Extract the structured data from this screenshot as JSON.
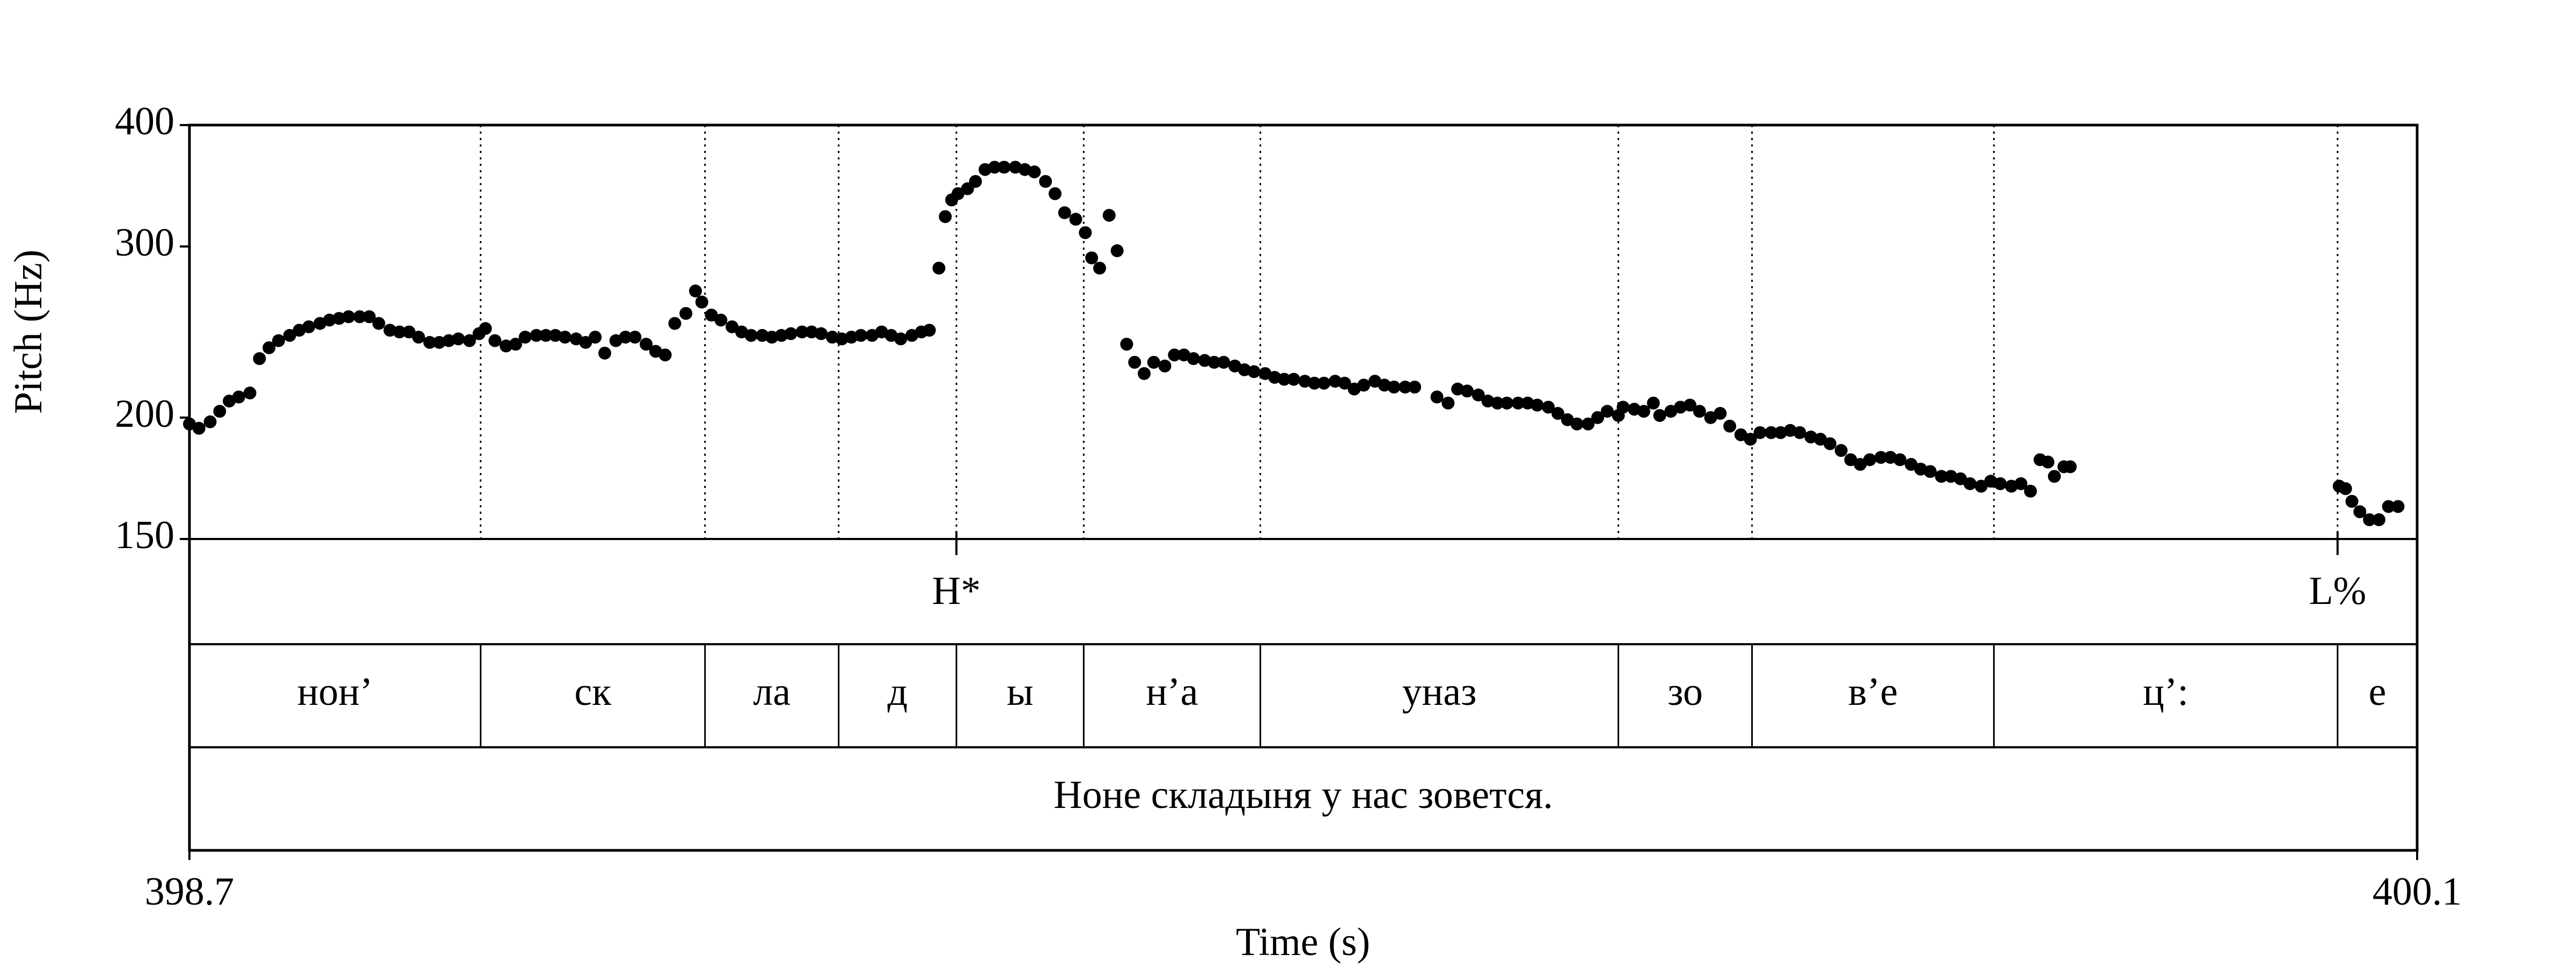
{
  "chart_data": {
    "type": "scatter",
    "x_label": "Time (s)",
    "y_label": "Pitch (Hz)",
    "xlim": [
      398.7,
      400.1
    ],
    "xticks": [
      398.7,
      400.1
    ],
    "ylim": [
      150,
      400
    ],
    "yticks": [
      150,
      200,
      300,
      400
    ],
    "y_scale": "log",
    "grid": false,
    "color": "#000000",
    "x": [
      398.7,
      398.706,
      398.713,
      398.719,
      398.725,
      398.731,
      398.738,
      398.744,
      398.75,
      398.756,
      398.763,
      398.769,
      398.775,
      398.782,
      398.788,
      398.794,
      398.8,
      398.807,
      398.813,
      398.819,
      398.826,
      398.832,
      398.838,
      398.844,
      398.851,
      398.857,
      398.863,
      398.869,
      398.876,
      398.882,
      398.886,
      398.892,
      398.899,
      398.905,
      398.911,
      398.918,
      398.924,
      398.93,
      398.936,
      398.943,
      398.949,
      398.955,
      398.961,
      398.968,
      398.974,
      398.98,
      398.987,
      398.993,
      398.999,
      399.005,
      399.012,
      399.018,
      399.022,
      399.028,
      399.034,
      399.041,
      399.047,
      399.053,
      399.06,
      399.066,
      399.072,
      399.078,
      399.085,
      399.091,
      399.097,
      399.104,
      399.11,
      399.116,
      399.122,
      399.129,
      399.135,
      399.141,
      399.147,
      399.154,
      399.16,
      399.165,
      399.171,
      399.175,
      399.179,
      399.183,
      399.189,
      399.194,
      399.2,
      399.206,
      399.212,
      399.219,
      399.225,
      399.231,
      399.238,
      399.244,
      399.25,
      399.257,
      399.263,
      399.267,
      399.272,
      399.278,
      399.283,
      399.289,
      399.294,
      399.3,
      399.306,
      399.313,
      399.319,
      399.325,
      399.331,
      399.338,
      399.344,
      399.35,
      399.357,
      399.363,
      399.369,
      399.376,
      399.382,
      399.388,
      399.394,
      399.401,
      399.407,
      399.413,
      399.42,
      399.426,
      399.432,
      399.438,
      399.445,
      399.451,
      399.457,
      399.464,
      399.47,
      399.484,
      399.491,
      399.497,
      399.503,
      399.51,
      399.516,
      399.522,
      399.528,
      399.535,
      399.541,
      399.547,
      399.554,
      399.56,
      399.566,
      399.572,
      399.579,
      399.585,
      399.591,
      399.598,
      399.601,
      399.608,
      399.614,
      399.62,
      399.624,
      399.631,
      399.637,
      399.643,
      399.649,
      399.656,
      399.662,
      399.668,
      399.675,
      399.681,
      399.687,
      399.694,
      399.7,
      399.706,
      399.712,
      399.719,
      399.725,
      399.731,
      399.738,
      399.744,
      399.75,
      399.756,
      399.763,
      399.769,
      399.775,
      399.782,
      399.788,
      399.794,
      399.801,
      399.807,
      399.813,
      399.819,
      399.826,
      399.832,
      399.838,
      399.845,
      399.851,
      399.857,
      399.863,
      399.868,
      399.872,
      399.878,
      399.882,
      400.051,
      400.055,
      400.059,
      400.064,
      400.07,
      400.076,
      400.082,
      400.088
    ],
    "values": [
      197,
      195,
      198,
      203,
      208,
      210,
      212,
      230,
      236,
      240,
      243,
      246,
      248,
      250,
      252,
      253,
      254,
      254,
      254,
      250,
      246,
      245,
      245,
      242,
      239,
      239,
      240,
      241,
      240,
      244,
      247,
      240,
      237,
      238,
      242,
      243,
      243,
      243,
      242,
      241,
      239,
      242,
      233,
      240,
      242,
      242,
      238,
      234,
      232,
      250,
      256,
      270,
      263,
      255,
      252,
      248,
      245,
      243,
      243,
      242,
      243,
      244,
      245,
      245,
      244,
      242,
      241,
      242,
      243,
      243,
      245,
      243,
      241,
      243,
      245,
      246,
      285,
      322,
      335,
      340,
      344,
      350,
      360,
      362,
      362,
      362,
      360,
      358,
      350,
      340,
      325,
      320,
      310,
      292,
      285,
      323,
      297,
      238,
      228,
      222,
      228,
      226,
      232,
      232,
      230,
      229,
      228,
      228,
      226,
      224,
      223,
      222,
      220,
      219,
      219,
      218,
      217,
      217,
      218,
      217,
      214,
      216,
      218,
      216,
      215,
      215,
      215,
      210,
      207,
      214,
      213,
      211,
      208,
      207,
      207,
      207,
      207,
      206,
      205,
      202,
      199,
      197,
      197,
      200,
      203,
      201,
      205,
      204,
      203,
      207,
      201,
      203,
      205,
      206,
      203,
      200,
      202,
      196,
      192,
      190,
      193,
      193,
      193,
      194,
      193,
      191,
      190,
      188,
      185,
      181,
      179,
      181,
      182,
      182,
      181,
      179,
      177,
      176,
      174,
      174,
      173,
      171,
      170,
      172,
      171,
      170,
      171,
      168,
      181,
      180,
      174,
      178,
      178,
      170,
      169,
      164,
      160,
      157,
      157,
      162,
      162
    ],
    "tiers": {
      "tones": [
        {
          "time": 399.182,
          "label": "H*"
        },
        {
          "time": 400.05,
          "label": "L%"
        }
      ],
      "segments": {
        "boundaries": [
          398.883,
          399.024,
          399.108,
          399.182,
          399.262,
          399.373,
          399.598,
          399.682,
          399.834,
          400.05
        ],
        "labels": [
          "нон’",
          "ск",
          "ла",
          "д",
          "ы",
          "н’а",
          "уназ",
          "зо",
          "в’е",
          "ц’:",
          "е"
        ]
      },
      "sentence": "Ноне складыня у нас зовется."
    }
  }
}
